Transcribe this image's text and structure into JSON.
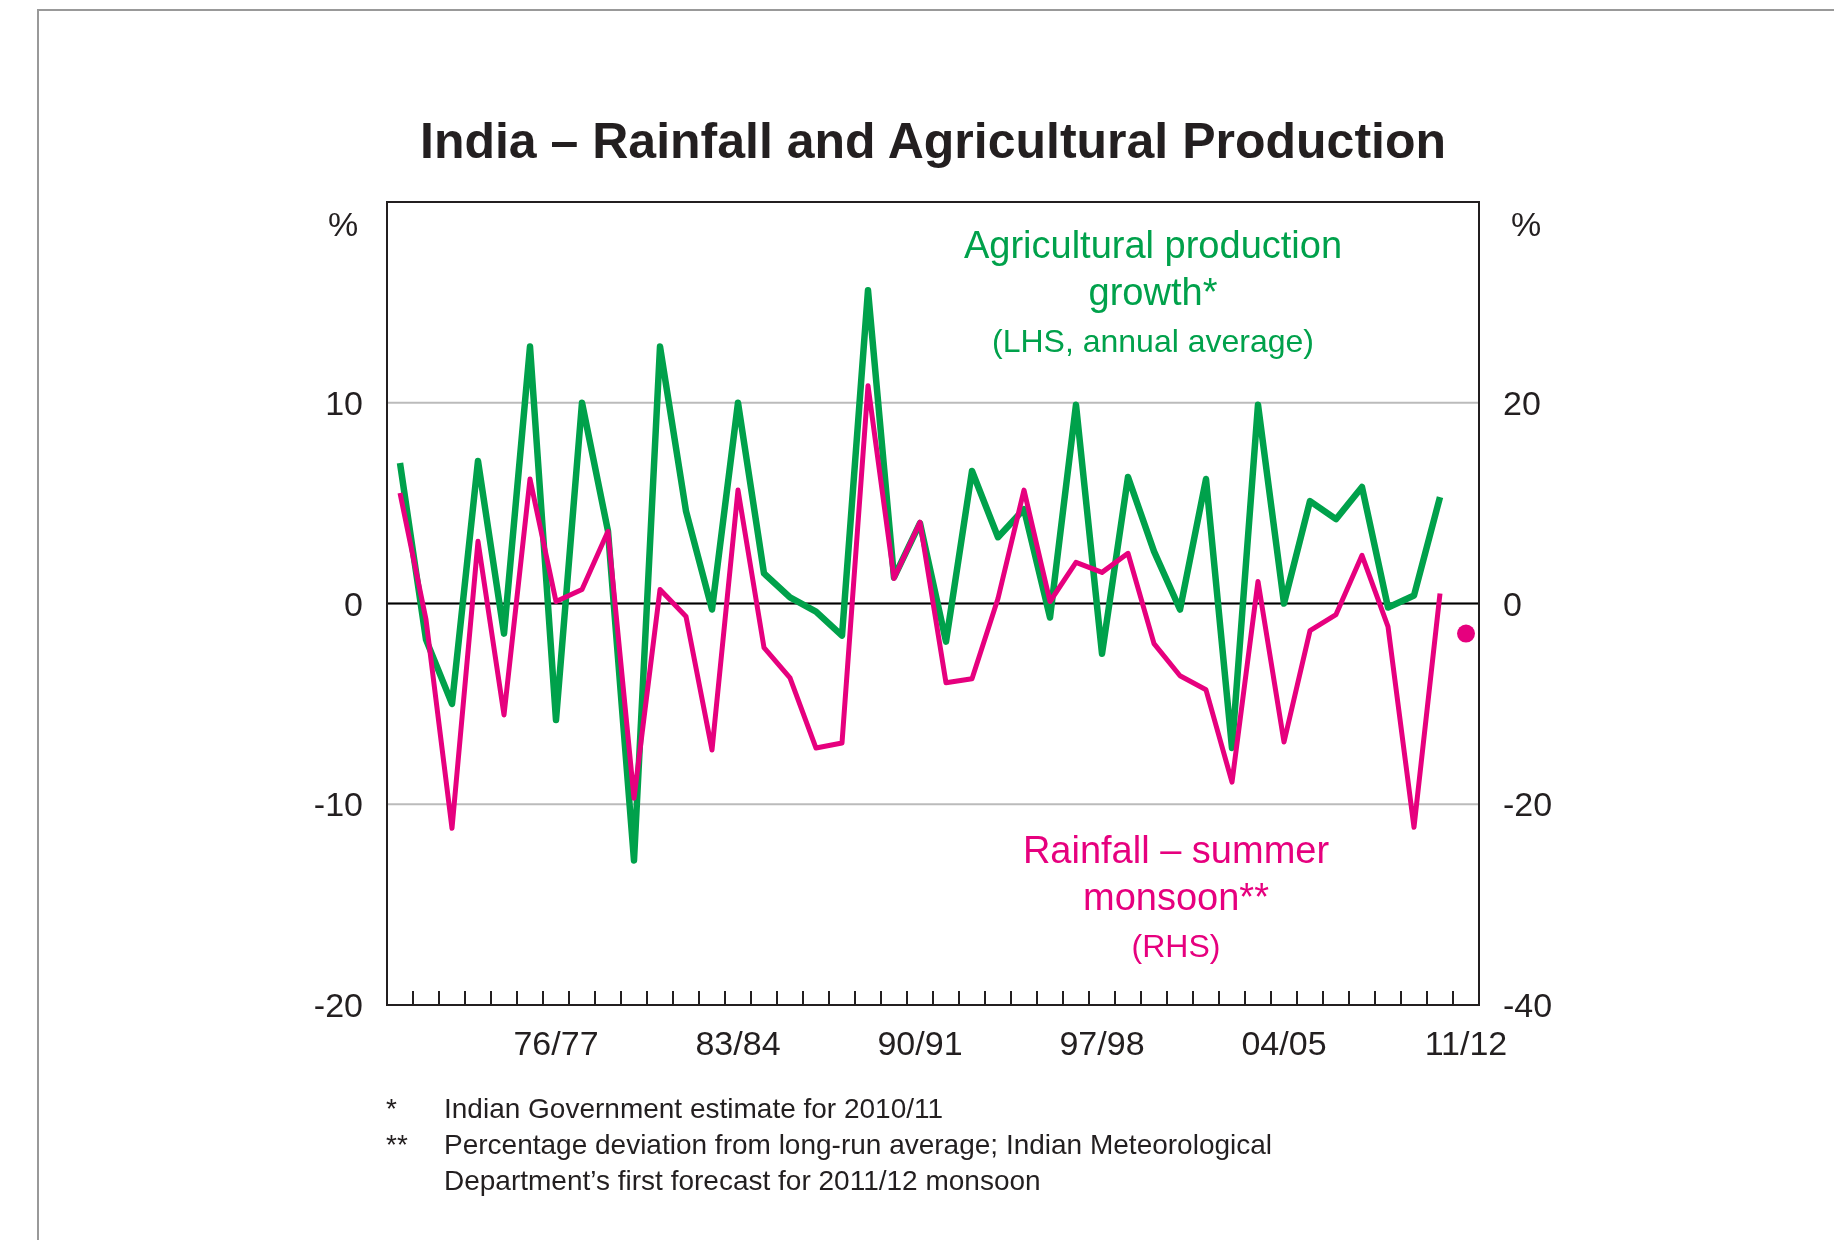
{
  "chart_data": {
    "type": "line",
    "title": "India – Rainfall and Agricultural Production",
    "ylabel": "%",
    "y2label": "%",
    "categories": [
      null,
      null,
      null,
      null,
      null,
      null,
      "76/77",
      null,
      null,
      null,
      null,
      null,
      null,
      "83/84",
      null,
      null,
      null,
      null,
      null,
      null,
      "90/91",
      null,
      null,
      null,
      null,
      null,
      null,
      "97/98",
      null,
      null,
      null,
      null,
      null,
      null,
      "04/05",
      null,
      null,
      null,
      null,
      null,
      null,
      "11/12"
    ],
    "series": [
      {
        "name": "Agricultural production growth*",
        "color": "#00a14b",
        "values": [
          7.0,
          -1.8,
          -5.0,
          7.1,
          -1.5,
          12.8,
          -5.8,
          10.0,
          3.6,
          -12.8,
          12.8,
          4.6,
          -0.3,
          10.0,
          1.5,
          0.3,
          -0.4,
          -1.6,
          15.6,
          1.3,
          4.0,
          -1.9,
          6.6,
          3.3,
          4.7,
          -0.7,
          9.9,
          -2.5,
          6.3,
          2.6,
          -0.3,
          6.2,
          -7.2,
          9.9,
          0.0,
          5.1,
          4.2,
          5.8,
          -0.2,
          0.4,
          5.3,
          null
        ]
      },
      {
        "name": "Rainfall – summer monsoon**",
        "color": "#e6007e",
        "axis": "y2",
        "values": [
          11.0,
          -1.6,
          -22.4,
          6.2,
          -11.1,
          12.4,
          0.2,
          1.4,
          7.2,
          -19.4,
          1.4,
          -1.3,
          -14.6,
          11.3,
          -4.4,
          -7.4,
          -14.4,
          -13.9,
          21.7,
          2.5,
          8.1,
          -7.9,
          -7.5,
          0.5,
          11.3,
          0.2,
          4.1,
          3.1,
          5.0,
          -4.0,
          -7.2,
          -8.6,
          -17.8,
          2.2,
          -13.8,
          -2.7,
          -1.1,
          4.8,
          -2.3,
          -22.3,
          1.0,
          null
        ]
      },
      {
        "type": "scatter",
        "color": "#e6007e",
        "axis": "y2",
        "marker": "circle",
        "values": [
          null,
          null,
          null,
          null,
          null,
          null,
          null,
          null,
          null,
          null,
          null,
          null,
          null,
          null,
          null,
          null,
          null,
          null,
          null,
          null,
          null,
          null,
          null,
          null,
          null,
          null,
          null,
          null,
          null,
          null,
          null,
          null,
          null,
          null,
          null,
          null,
          null,
          null,
          null,
          null,
          null,
          -3.0
        ]
      }
    ],
    "ylim": [
      -20,
      20
    ],
    "yticks": [
      -20,
      -10,
      0,
      10
    ],
    "y2lim": [
      -40,
      40
    ],
    "y2ticks": [
      -40,
      -20,
      0,
      20
    ],
    "grid": "y",
    "line_style": "solid",
    "ref_lines": [
      {
        "axis": "y",
        "value": 0,
        "color": "#000000"
      }
    ],
    "annotations": [
      "(LHS, annual average)",
      "(RHS)",
      "*   Indian Government estimate for 2010/11",
      "**  Percentage deviation from long-run average; Indian Meteorological Department’s first forecast for 2011/12 monsoon"
    ]
  }
}
